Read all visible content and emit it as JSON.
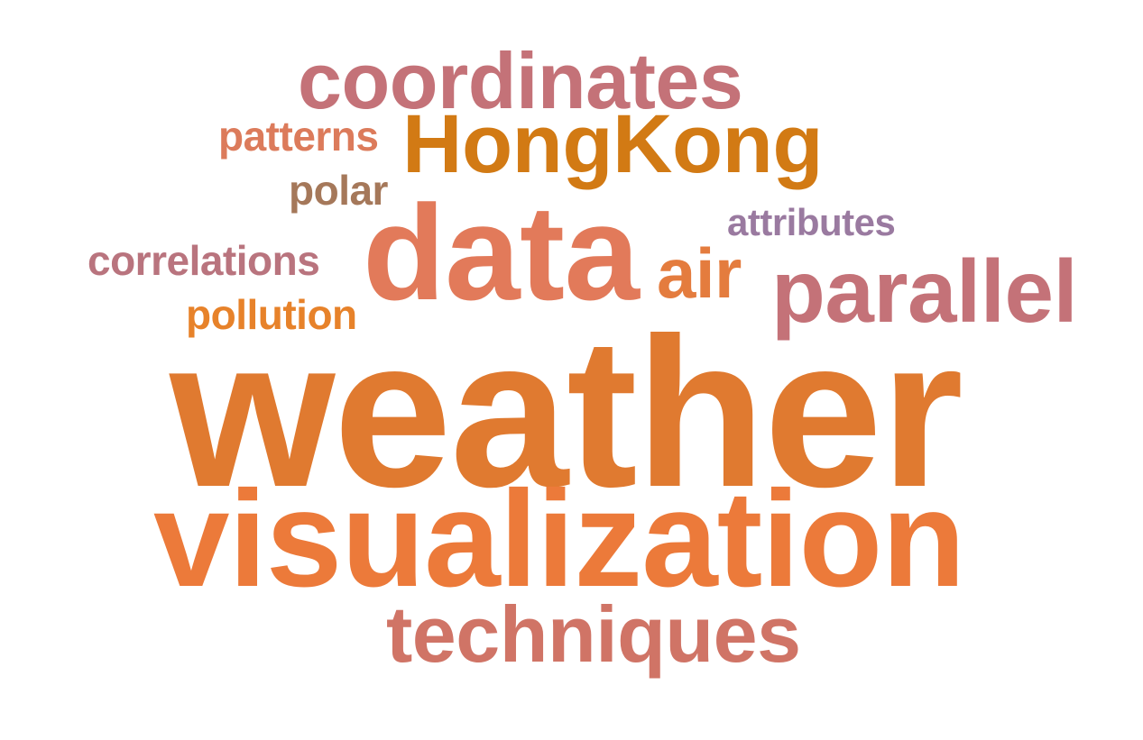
{
  "word_cloud": {
    "words": [
      {
        "id": "coordinates",
        "text": "coordinates",
        "color": "#c47278"
      },
      {
        "id": "patterns",
        "text": "patterns",
        "color": "#dc7b5b"
      },
      {
        "id": "hongkong",
        "text": "HongKong",
        "color": "#d27a14"
      },
      {
        "id": "polar",
        "text": "polar",
        "color": "#a5785a"
      },
      {
        "id": "data",
        "text": "data",
        "color": "#e27a5a"
      },
      {
        "id": "attributes",
        "text": "attributes",
        "color": "#9a7aa0"
      },
      {
        "id": "correlations",
        "text": "correlations",
        "color": "#b9747e"
      },
      {
        "id": "air",
        "text": "air",
        "color": "#e47c3e"
      },
      {
        "id": "parallel",
        "text": "parallel",
        "color": "#c47278"
      },
      {
        "id": "pollution",
        "text": "pollution",
        "color": "#e7822a"
      },
      {
        "id": "weather",
        "text": "weather",
        "color": "#e07a30"
      },
      {
        "id": "visualization",
        "text": "visualization",
        "color": "#ec7a3a"
      },
      {
        "id": "techniques",
        "text": "techniques",
        "color": "#d07466"
      }
    ]
  }
}
